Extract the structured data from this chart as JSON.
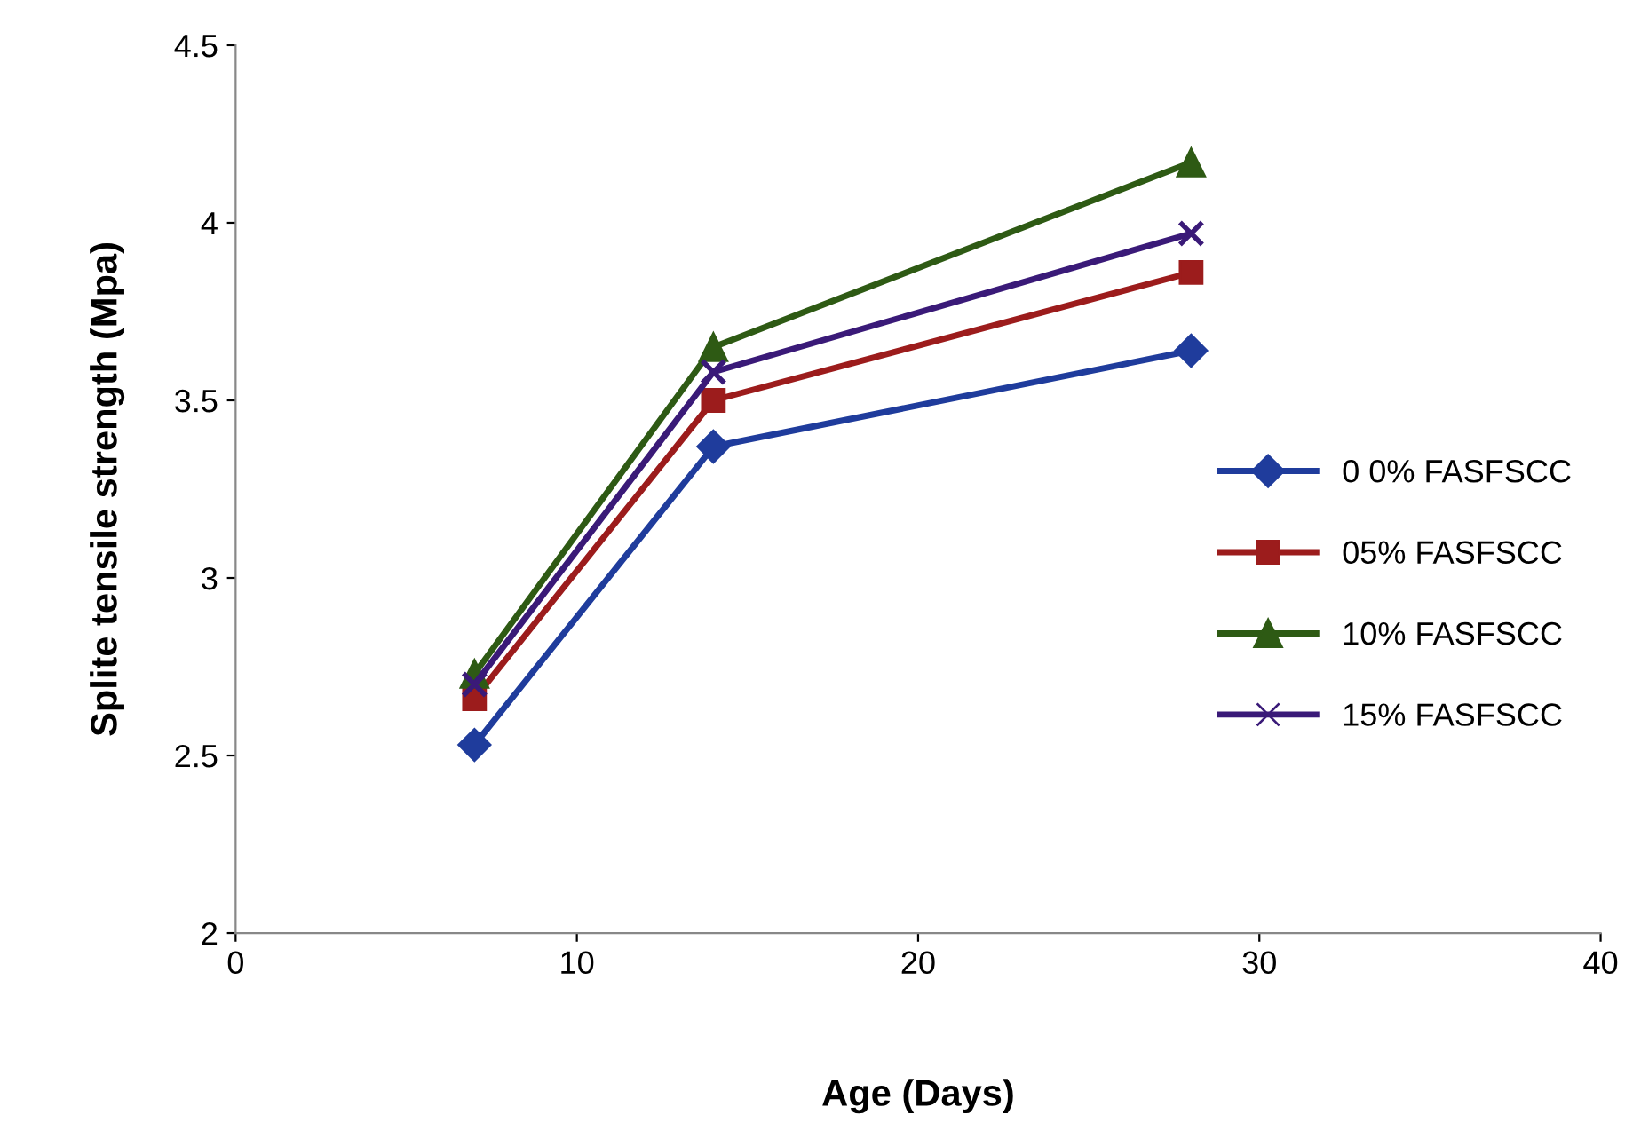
{
  "chart_data": {
    "type": "line",
    "xlabel": "Age (Days)",
    "ylabel": "Splite tensile strength (Mpa)",
    "x": [
      7,
      14,
      28
    ],
    "series": [
      {
        "name": "0 0% FASFSCC",
        "color": "#1f3c9c",
        "marker": "diamond",
        "values": [
          2.53,
          3.37,
          3.64
        ]
      },
      {
        "name": "05% FASFSCC",
        "color": "#9c1c1c",
        "marker": "square",
        "values": [
          2.66,
          3.5,
          3.86
        ]
      },
      {
        "name": "10% FASFSCC",
        "color": "#2e5a14",
        "marker": "triangle",
        "values": [
          2.73,
          3.65,
          4.17
        ]
      },
      {
        "name": "15% FASFSCC",
        "color": "#3a1a78",
        "marker": "cross",
        "values": [
          2.7,
          3.58,
          3.97
        ]
      }
    ],
    "xlim": [
      0,
      40
    ],
    "xticks": [
      0,
      10,
      20,
      30,
      40
    ],
    "ylim": [
      2,
      4.5
    ],
    "yticks": [
      2,
      2.5,
      3,
      3.5,
      4,
      4.5
    ],
    "grid": false,
    "legend": "right",
    "line_style": "solid"
  }
}
